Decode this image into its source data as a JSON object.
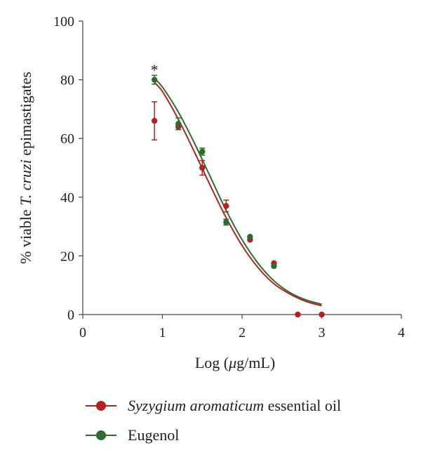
{
  "chart_data": {
    "type": "scatter",
    "ylabel_prefix": "% viable ",
    "ylabel_italic": "T. cruzi",
    "ylabel_suffix": " epimastigates",
    "xlabel_prefix": "Log (",
    "xlabel_italic": "μ",
    "xlabel_suffix": "g/mL)",
    "xlim": [
      0,
      4
    ],
    "ylim": [
      0,
      100
    ],
    "xticks": [
      0,
      1,
      2,
      3,
      4
    ],
    "yticks": [
      0,
      20,
      40,
      60,
      80,
      100
    ],
    "annotation": {
      "text": "*",
      "x": 0.9,
      "y": 84
    },
    "series": [
      {
        "legend_italic": "Syzygium aromaticum",
        "legend_rest": " essential oil",
        "color": "#b22222",
        "points": [
          {
            "x": 0.9,
            "y": 66,
            "err": 6.5
          },
          {
            "x": 1.2,
            "y": 64,
            "err": 1.0
          },
          {
            "x": 1.5,
            "y": 50,
            "err": 2.5
          },
          {
            "x": 1.8,
            "y": 37,
            "err": 2.0
          },
          {
            "x": 2.1,
            "y": 25.5,
            "err": 0
          },
          {
            "x": 2.4,
            "y": 17.5,
            "err": 0
          },
          {
            "x": 2.7,
            "y": 0,
            "err": 0
          },
          {
            "x": 3.0,
            "y": 0,
            "err": 0
          }
        ],
        "fit": [
          [
            0.9,
            79
          ],
          [
            1.0,
            76
          ],
          [
            1.2,
            66.5
          ],
          [
            1.4,
            55.5
          ],
          [
            1.6,
            44
          ],
          [
            1.8,
            33
          ],
          [
            2.0,
            23.5
          ],
          [
            2.2,
            16
          ],
          [
            2.4,
            10.5
          ],
          [
            2.6,
            7
          ],
          [
            2.8,
            4.5
          ],
          [
            3.0,
            3
          ]
        ]
      },
      {
        "legend_italic": "",
        "legend_rest": "Eugenol",
        "color": "#2e6b2e",
        "points": [
          {
            "x": 0.9,
            "y": 80,
            "err": 1.5
          },
          {
            "x": 1.2,
            "y": 65,
            "err": 2.0
          },
          {
            "x": 1.5,
            "y": 55.5,
            "err": 1.2
          },
          {
            "x": 1.8,
            "y": 31.5,
            "err": 1.0
          },
          {
            "x": 2.1,
            "y": 26.5,
            "err": 0
          },
          {
            "x": 2.4,
            "y": 16.5,
            "err": 0
          }
        ],
        "fit": [
          [
            0.9,
            80.5
          ],
          [
            1.0,
            77.5
          ],
          [
            1.2,
            69
          ],
          [
            1.4,
            58.5
          ],
          [
            1.6,
            47
          ],
          [
            1.8,
            35.5
          ],
          [
            2.0,
            25.5
          ],
          [
            2.2,
            17.5
          ],
          [
            2.4,
            11.5
          ],
          [
            2.6,
            7.5
          ],
          [
            2.8,
            5
          ],
          [
            3.0,
            3.5
          ]
        ]
      }
    ]
  }
}
